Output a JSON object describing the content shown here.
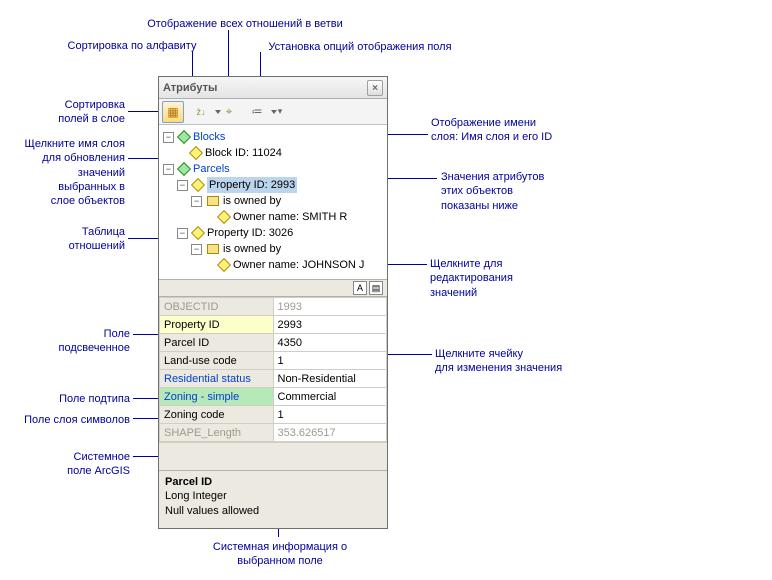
{
  "panel": {
    "title": "Атрибуты",
    "close_glyph": "×"
  },
  "toolbar": {
    "btn_layer_glyph": "▦",
    "btn_sort_alpha": "ẑ↓",
    "btn_find": "⌖",
    "btn_relations": "≔",
    "dropdown_caret": "▾"
  },
  "tree": {
    "blocks_label": "Blocks",
    "block_id_label": "Block ID: 11024",
    "parcels_label": "Parcels",
    "prop1_label": "Property ID: 2993",
    "owned_by": "is owned by",
    "owner1": "Owner name: SMITH R",
    "prop2_label": "Property ID: 3026",
    "owner2": "Owner name: JOHNSON J"
  },
  "tableRows": [
    {
      "name": "OBJECTID",
      "value": "1993",
      "cls": "sys"
    },
    {
      "name": "Property ID",
      "value": "2993",
      "cls": "hl-yellow"
    },
    {
      "name": "Parcel ID",
      "value": "4350"
    },
    {
      "name": "Land-use code",
      "value": "1"
    },
    {
      "name": "Residential status",
      "value": "Non-Residential",
      "cls": "link-name"
    },
    {
      "name": "Zoning - simple",
      "value": "Commercial",
      "cls": "hl-green link-name"
    },
    {
      "name": "Zoning code",
      "value": "1"
    },
    {
      "name": "SHAPE_Length",
      "value": "353.626517",
      "cls": "sys"
    }
  ],
  "info": {
    "header": "Parcel ID",
    "type": "Long Integer",
    "nulls": "Null values allowed"
  },
  "callouts": {
    "c1": "Отображение всех отношений в  ветви",
    "c2": "Сортировка по алфавиту",
    "c3": "Установка опций отображения поля",
    "c4": "Сортировка\nполей в слое",
    "c5": "Щелкните имя слоя\nдля обновления\nзначений\nвыбранных в\nслое объектов",
    "c6": "Таблица\nотношений",
    "c7": "Отображение имени\nслоя: Имя слоя  и его ID",
    "c8": "Значения атрибутов\nэтих объектов\nпоказаны ниже",
    "c9": "Щелкните для\nредактирования\nзначений",
    "c10": "Поле\nподсвеченное",
    "c11": "Поле подтипа",
    "c12": "Поле слоя символов",
    "c13": "Системное\nполе  ArcGIS",
    "c14": "Щелкните ячейку\nдля изменения значения",
    "c15": "Системная информация о\nвыбранном поле"
  }
}
